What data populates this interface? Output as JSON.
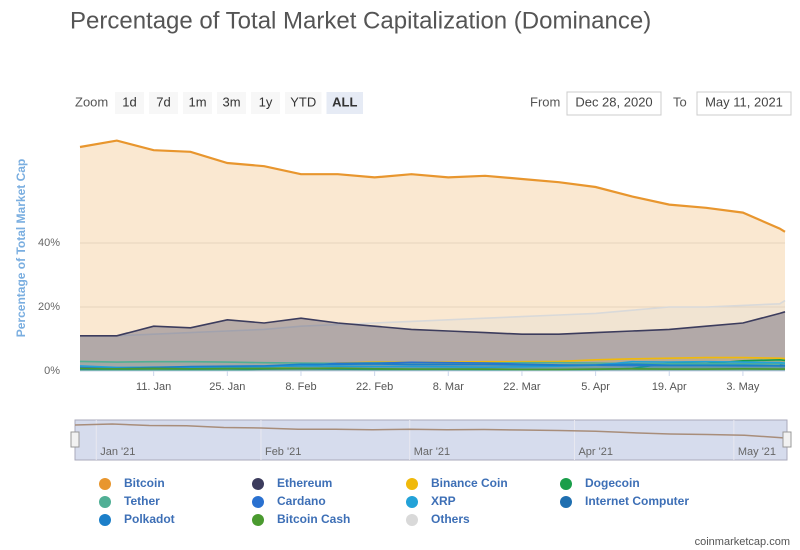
{
  "chart_data": {
    "type": "area",
    "title": "Percentage of Total Market Capitalization (Dominance)",
    "y_axis_label": "Percentage of Total Market Cap",
    "zoom_label": "Zoom",
    "zoom_buttons": [
      "1d",
      "7d",
      "1m",
      "3m",
      "1y",
      "YTD",
      "ALL"
    ],
    "selected_zoom": "ALL",
    "from_label": "From",
    "from_date": "Dec 28, 2020",
    "to_label": "To",
    "to_date": "May 11, 2021",
    "credit": "coinmarketcap.com",
    "grid": true,
    "ylim": [
      0,
      80
    ],
    "yticks": [
      {
        "value": 0,
        "label": "0%"
      },
      {
        "value": 20,
        "label": "20%"
      },
      {
        "value": 40,
        "label": "40%"
      }
    ],
    "xlim": [
      "2020-12-28",
      "2021-05-11"
    ],
    "xticks": [
      {
        "value": "2021-01-11",
        "label": "11. Jan"
      },
      {
        "value": "2021-01-25",
        "label": "25. Jan"
      },
      {
        "value": "2021-02-08",
        "label": "8. Feb"
      },
      {
        "value": "2021-02-22",
        "label": "22. Feb"
      },
      {
        "value": "2021-03-08",
        "label": "8. Mar"
      },
      {
        "value": "2021-03-22",
        "label": "22. Mar"
      },
      {
        "value": "2021-04-05",
        "label": "5. Apr"
      },
      {
        "value": "2021-04-19",
        "label": "19. Apr"
      },
      {
        "value": "2021-05-03",
        "label": "3. May"
      }
    ],
    "navigator_xticks": [
      {
        "value": "2021-01-01",
        "label": "Jan '21"
      },
      {
        "value": "2021-02-01",
        "label": "Feb '21"
      },
      {
        "value": "2021-03-01",
        "label": "Mar '21"
      },
      {
        "value": "2021-04-01",
        "label": "Apr '21"
      },
      {
        "value": "2021-05-01",
        "label": "May '21"
      }
    ],
    "x": [
      "2020-12-28",
      "2021-01-04",
      "2021-01-11",
      "2021-01-18",
      "2021-01-25",
      "2021-02-01",
      "2021-02-08",
      "2021-02-15",
      "2021-02-22",
      "2021-03-01",
      "2021-03-08",
      "2021-03-15",
      "2021-03-22",
      "2021-03-29",
      "2021-04-05",
      "2021-04-12",
      "2021-04-19",
      "2021-04-26",
      "2021-05-03",
      "2021-05-10",
      "2021-05-11"
    ],
    "series": [
      {
        "name": "Bitcoin",
        "color": "#e8962e",
        "values": [
          70,
          72,
          69,
          68.5,
          65,
          64,
          61.5,
          61.5,
          60.5,
          61.5,
          60.5,
          61,
          60,
          59,
          57.5,
          54.5,
          52,
          51,
          49.5,
          44.5,
          43.5
        ]
      },
      {
        "name": "Ethereum",
        "color": "#3c3c5d",
        "values": [
          11,
          11,
          14,
          13.5,
          16,
          15,
          16.5,
          15,
          14,
          13,
          12.5,
          12,
          11.5,
          11.5,
          12,
          12.5,
          13,
          14,
          15,
          18,
          18.5
        ]
      },
      {
        "name": "Binance Coin",
        "color": "#f0b90b",
        "values": [
          0.6,
          0.6,
          0.7,
          0.8,
          0.8,
          1,
          1.5,
          2.5,
          2.8,
          2.7,
          2.8,
          2.9,
          2.9,
          3,
          3.5,
          3.8,
          4,
          4.2,
          4.2,
          4,
          3.9
        ]
      },
      {
        "name": "Dogecoin",
        "color": "#1a9e4a",
        "values": [
          0.2,
          0.2,
          0.2,
          0.2,
          0.2,
          0.6,
          0.8,
          0.6,
          0.5,
          0.5,
          0.5,
          0.4,
          0.4,
          0.4,
          0.5,
          0.8,
          2.5,
          2.3,
          3.2,
          3.5,
          3.3
        ]
      },
      {
        "name": "Tether",
        "color": "#50af95",
        "values": [
          3,
          2.8,
          2.9,
          2.9,
          2.8,
          2.6,
          2.5,
          2.4,
          2.6,
          2.6,
          2.5,
          2.5,
          2.6,
          2.6,
          2.5,
          2.3,
          2.3,
          2.3,
          2.3,
          2.2,
          2.3
        ]
      },
      {
        "name": "Cardano",
        "color": "#2a71d0",
        "values": [
          1.1,
          1.0,
          1.1,
          1.1,
          1.2,
          1.4,
          1.6,
          2.4,
          2.4,
          2.7,
          2.6,
          2.5,
          2.1,
          1.9,
          1.8,
          1.7,
          1.7,
          1.7,
          1.6,
          1.6,
          1.7
        ]
      },
      {
        "name": "XRP",
        "color": "#23a2d8",
        "values": [
          1.6,
          1.1,
          1.2,
          1.2,
          1.2,
          1.4,
          1.6,
          1.5,
          1.4,
          1.4,
          1.3,
          1.2,
          1.3,
          1.5,
          1.8,
          2.9,
          2.8,
          2.9,
          2.8,
          2.6,
          2.5
        ]
      },
      {
        "name": "Internet Computer",
        "color": "#1f6fb0",
        "values": [
          null,
          null,
          null,
          null,
          null,
          null,
          null,
          null,
          null,
          null,
          null,
          null,
          null,
          null,
          null,
          null,
          null,
          null,
          null,
          1.8,
          1.6
        ]
      },
      {
        "name": "Polkadot",
        "color": "#1c7fc9",
        "values": [
          0.6,
          0.8,
          1.1,
          1.4,
          1.5,
          1.6,
          2.1,
          2.1,
          2.2,
          2.0,
          2.0,
          2.0,
          1.9,
          1.8,
          1.9,
          2.1,
          1.8,
          1.8,
          1.8,
          1.6,
          1.6
        ]
      },
      {
        "name": "Bitcoin Cash",
        "color": "#4a9a2f",
        "values": [
          0.8,
          0.7,
          0.8,
          0.7,
          0.8,
          0.8,
          0.8,
          0.9,
          0.7,
          0.6,
          0.6,
          0.6,
          0.5,
          0.5,
          0.6,
          0.7,
          0.6,
          0.6,
          0.7,
          0.6,
          0.6
        ]
      },
      {
        "name": "Others",
        "color": "#d9d9d9",
        "values": [
          11,
          11,
          11.5,
          12,
          12.5,
          13,
          14,
          14.5,
          15,
          15.5,
          16,
          16.5,
          17,
          17.5,
          18,
          19,
          20,
          20,
          20.5,
          21,
          22
        ]
      }
    ]
  }
}
